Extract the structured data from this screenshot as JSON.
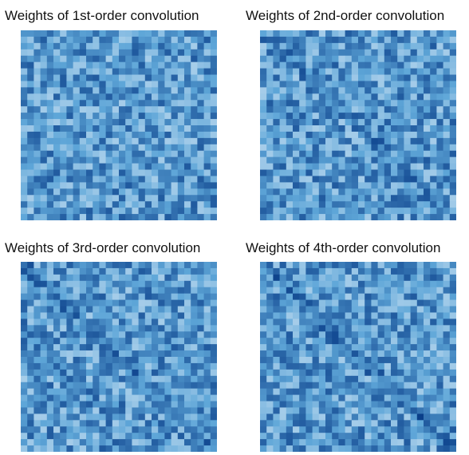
{
  "palette": {
    "low": "#eef4fb",
    "mid": "#5ea6d8",
    "high": "#0a3f8a",
    "background": "#ffffff"
  },
  "chart_data": [
    {
      "type": "heatmap",
      "title": "Weights of 1st-order convolution",
      "rows": 30,
      "cols": 30,
      "diagonal_strength": 0.05,
      "seed": 11,
      "xlabel": "",
      "ylabel": "",
      "grid": false,
      "legend": "none"
    },
    {
      "type": "heatmap",
      "title": "Weights of 2nd-order convolution",
      "rows": 30,
      "cols": 30,
      "diagonal_strength": 0.45,
      "seed": 23,
      "xlabel": "",
      "ylabel": "",
      "grid": false,
      "legend": "none"
    },
    {
      "type": "heatmap",
      "title": "Weights of 3rd-order convolution",
      "rows": 30,
      "cols": 30,
      "diagonal_strength": 0.6,
      "seed": 37,
      "xlabel": "",
      "ylabel": "",
      "grid": false,
      "legend": "none"
    },
    {
      "type": "heatmap",
      "title": "Weights of 4th-order convolution",
      "rows": 30,
      "cols": 30,
      "diagonal_strength": 0.75,
      "seed": 53,
      "xlabel": "",
      "ylabel": "",
      "grid": false,
      "legend": "none"
    }
  ]
}
